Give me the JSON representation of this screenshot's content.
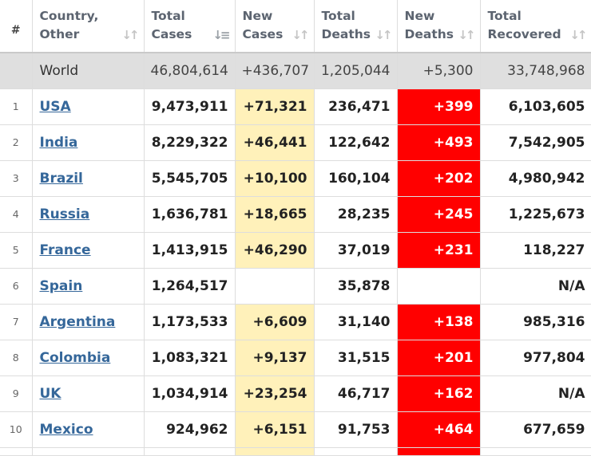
{
  "columns": [
    {
      "label_1": "#",
      "label_2": ""
    },
    {
      "label_1": "Country,",
      "label_2": "Other",
      "sort_icon": "sort-icon"
    },
    {
      "label_1": "Total",
      "label_2": "Cases",
      "sort_icon": "sort-active-icon"
    },
    {
      "label_1": "New",
      "label_2": "Cases",
      "sort_icon": "sort-icon"
    },
    {
      "label_1": "Total",
      "label_2": "Deaths",
      "sort_icon": "sort-icon"
    },
    {
      "label_1": "New",
      "label_2": "Deaths",
      "sort_icon": "sort-icon"
    },
    {
      "label_1": "Total",
      "label_2": "Recovered",
      "sort_icon": "sort-icon"
    }
  ],
  "world": {
    "name": "World",
    "total_cases": "46,804,614",
    "new_cases": "+436,707",
    "total_deaths": "1,205,044",
    "new_deaths": "+5,300",
    "total_recovered": "33,748,968"
  },
  "rows": [
    {
      "rank": "1",
      "country": "USA",
      "total_cases": "9,473,911",
      "new_cases": "+71,321",
      "total_deaths": "236,471",
      "new_deaths": "+399",
      "total_recovered": "6,103,605"
    },
    {
      "rank": "2",
      "country": "India",
      "total_cases": "8,229,322",
      "new_cases": "+46,441",
      "total_deaths": "122,642",
      "new_deaths": "+493",
      "total_recovered": "7,542,905"
    },
    {
      "rank": "3",
      "country": "Brazil",
      "total_cases": "5,545,705",
      "new_cases": "+10,100",
      "total_deaths": "160,104",
      "new_deaths": "+202",
      "total_recovered": "4,980,942"
    },
    {
      "rank": "4",
      "country": "Russia",
      "total_cases": "1,636,781",
      "new_cases": "+18,665",
      "total_deaths": "28,235",
      "new_deaths": "+245",
      "total_recovered": "1,225,673"
    },
    {
      "rank": "5",
      "country": "France",
      "total_cases": "1,413,915",
      "new_cases": "+46,290",
      "total_deaths": "37,019",
      "new_deaths": "+231",
      "total_recovered": "118,227"
    },
    {
      "rank": "6",
      "country": "Spain",
      "total_cases": "1,264,517",
      "new_cases": "",
      "total_deaths": "35,878",
      "new_deaths": "",
      "total_recovered": "N/A"
    },
    {
      "rank": "7",
      "country": "Argentina",
      "total_cases": "1,173,533",
      "new_cases": "+6,609",
      "total_deaths": "31,140",
      "new_deaths": "+138",
      "total_recovered": "985,316"
    },
    {
      "rank": "8",
      "country": "Colombia",
      "total_cases": "1,083,321",
      "new_cases": "+9,137",
      "total_deaths": "31,515",
      "new_deaths": "+201",
      "total_recovered": "977,804"
    },
    {
      "rank": "9",
      "country": "UK",
      "total_cases": "1,034,914",
      "new_cases": "+23,254",
      "total_deaths": "46,717",
      "new_deaths": "+162",
      "total_recovered": "N/A"
    },
    {
      "rank": "10",
      "country": "Mexico",
      "total_cases": "924,962",
      "new_cases": "+6,151",
      "total_deaths": "91,753",
      "new_deaths": "+464",
      "total_recovered": "677,659"
    }
  ],
  "colors": {
    "new_cases_bg": "#fff1ba",
    "new_deaths_bg": "#ff0000",
    "link": "#35679a",
    "world_row_bg": "#dfdfdf"
  }
}
